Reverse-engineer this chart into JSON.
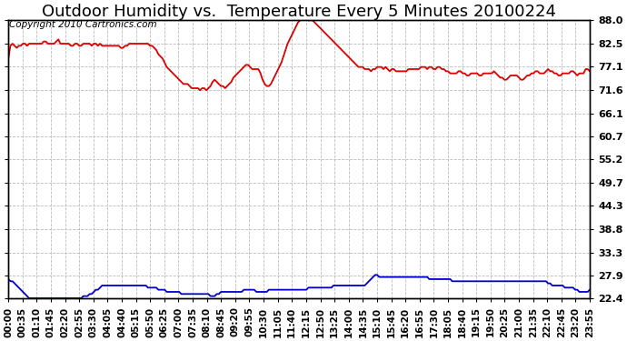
{
  "title": "Outdoor Humidity vs.  Temperature Every 5 Minutes 20100224",
  "copyright_text": "Copyright 2010 Cartronics.com",
  "yticks": [
    22.4,
    27.9,
    33.3,
    38.8,
    44.3,
    49.7,
    55.2,
    60.7,
    66.1,
    71.6,
    77.1,
    82.5,
    88.0
  ],
  "ymin": 22.4,
  "ymax": 88.0,
  "bg_color": "#ffffff",
  "grid_color": "#bbbbbb",
  "line_color_red": "#dd0000",
  "line_color_blue": "#0000cc",
  "title_fontsize": 13,
  "copyright_fontsize": 7.5,
  "tick_fontsize": 8,
  "xtick_labels": [
    "00:00",
    "00:35",
    "01:10",
    "01:45",
    "02:20",
    "02:55",
    "03:30",
    "04:05",
    "04:40",
    "05:15",
    "05:50",
    "06:25",
    "07:00",
    "07:35",
    "08:10",
    "08:45",
    "09:20",
    "09:55",
    "10:30",
    "11:05",
    "11:40",
    "12:15",
    "12:50",
    "13:25",
    "14:00",
    "14:35",
    "15:10",
    "15:45",
    "16:20",
    "16:55",
    "17:30",
    "18:05",
    "18:40",
    "19:15",
    "19:50",
    "20:25",
    "21:00",
    "21:35",
    "22:10",
    "22:45",
    "23:20",
    "23:55"
  ],
  "humidity_data": [
    79.0,
    82.0,
    82.5,
    82.0,
    81.5,
    82.0,
    82.0,
    82.5,
    82.5,
    82.0,
    82.5,
    82.5,
    82.5,
    82.5,
    82.5,
    82.5,
    82.5,
    83.0,
    83.0,
    82.5,
    82.5,
    82.5,
    82.5,
    83.0,
    83.5,
    82.5,
    82.5,
    82.5,
    82.5,
    82.5,
    82.0,
    82.0,
    82.5,
    82.5,
    82.0,
    82.0,
    82.5,
    82.5,
    82.5,
    82.5,
    82.0,
    82.5,
    82.5,
    82.0,
    82.5,
    82.0,
    82.0,
    82.0,
    82.0,
    82.0,
    82.0,
    82.0,
    82.0,
    82.0,
    81.5,
    81.5,
    82.0,
    82.0,
    82.5,
    82.5,
    82.5,
    82.5,
    82.5,
    82.5,
    82.5,
    82.5,
    82.5,
    82.5,
    82.0,
    82.0,
    81.5,
    81.0,
    80.0,
    79.5,
    79.0,
    78.0,
    77.0,
    76.5,
    76.0,
    75.5,
    75.0,
    74.5,
    74.0,
    73.5,
    73.0,
    73.0,
    73.0,
    72.5,
    72.0,
    72.0,
    72.0,
    72.0,
    71.5,
    72.0,
    72.0,
    71.5,
    72.0,
    72.5,
    73.5,
    74.0,
    73.5,
    73.0,
    72.5,
    72.5,
    72.0,
    72.5,
    73.0,
    73.5,
    74.5,
    75.0,
    75.5,
    76.0,
    76.5,
    77.0,
    77.5,
    77.5,
    77.0,
    76.5,
    76.5,
    76.5,
    76.5,
    75.5,
    74.0,
    73.0,
    72.5,
    72.5,
    73.0,
    74.0,
    75.0,
    76.0,
    77.0,
    78.0,
    79.5,
    81.0,
    82.5,
    83.5,
    84.5,
    85.5,
    86.5,
    87.5,
    88.0,
    88.5,
    88.5,
    88.5,
    88.0,
    88.0,
    88.0,
    87.5,
    87.0,
    86.5,
    86.0,
    85.5,
    85.0,
    84.5,
    84.0,
    83.5,
    83.0,
    82.5,
    82.0,
    81.5,
    81.0,
    80.5,
    80.0,
    79.5,
    79.0,
    78.5,
    78.0,
    77.5,
    77.0,
    77.0,
    77.0,
    76.5,
    76.5,
    76.5,
    76.0,
    76.5,
    76.5,
    77.0,
    77.0,
    77.0,
    76.5,
    77.0,
    76.5,
    76.0,
    76.5,
    76.5,
    76.0,
    76.0,
    76.0,
    76.0,
    76.0,
    76.0,
    76.5,
    76.5,
    76.5,
    76.5,
    76.5,
    76.5,
    77.0,
    77.0,
    77.0,
    76.5,
    77.0,
    77.0,
    76.5,
    76.5,
    77.0,
    77.0,
    76.5,
    76.5,
    76.0,
    76.0,
    75.5,
    75.5,
    75.5,
    75.5,
    76.0,
    76.0,
    75.5,
    75.5,
    75.0,
    75.0,
    75.5,
    75.5,
    75.5,
    75.5,
    75.0,
    75.0,
    75.5,
    75.5,
    75.5,
    75.5,
    75.5,
    76.0,
    75.5,
    75.0,
    74.5,
    74.5,
    74.0,
    74.0,
    74.5,
    75.0,
    75.0,
    75.0,
    75.0,
    74.5,
    74.0,
    74.0,
    74.5,
    75.0,
    75.0,
    75.5,
    75.5,
    76.0,
    76.0,
    75.5,
    75.5,
    75.5,
    76.0,
    76.5,
    76.0,
    76.0,
    75.5,
    75.5,
    75.0,
    75.0,
    75.5,
    75.5,
    75.5,
    75.5,
    76.0,
    76.0,
    75.5,
    75.0,
    75.5,
    75.5,
    75.5,
    76.5,
    76.5,
    76.0
  ],
  "temperature_data": [
    27.0,
    26.5,
    26.5,
    26.0,
    25.5,
    25.0,
    24.5,
    24.0,
    23.5,
    23.0,
    22.5,
    22.5,
    22.5,
    22.5,
    22.5,
    22.5,
    22.5,
    22.5,
    22.5,
    22.5,
    22.5,
    22.5,
    22.5,
    22.5,
    22.5,
    22.5,
    22.5,
    22.5,
    22.5,
    22.5,
    22.5,
    22.5,
    22.5,
    22.5,
    22.5,
    22.5,
    23.0,
    23.0,
    23.0,
    23.5,
    23.5,
    24.0,
    24.5,
    24.5,
    25.0,
    25.5,
    25.5,
    25.5,
    25.5,
    25.5,
    25.5,
    25.5,
    25.5,
    25.5,
    25.5,
    25.5,
    25.5,
    25.5,
    25.5,
    25.5,
    25.5,
    25.5,
    25.5,
    25.5,
    25.5,
    25.5,
    25.5,
    25.0,
    25.0,
    25.0,
    25.0,
    25.0,
    24.5,
    24.5,
    24.5,
    24.5,
    24.0,
    24.0,
    24.0,
    24.0,
    24.0,
    24.0,
    24.0,
    23.5,
    23.5,
    23.5,
    23.5,
    23.5,
    23.5,
    23.5,
    23.5,
    23.5,
    23.5,
    23.5,
    23.5,
    23.5,
    23.5,
    23.0,
    23.0,
    23.0,
    23.5,
    23.5,
    24.0,
    24.0,
    24.0,
    24.0,
    24.0,
    24.0,
    24.0,
    24.0,
    24.0,
    24.0,
    24.0,
    24.5,
    24.5,
    24.5,
    24.5,
    24.5,
    24.5,
    24.0,
    24.0,
    24.0,
    24.0,
    24.0,
    24.0,
    24.5,
    24.5,
    24.5,
    24.5,
    24.5,
    24.5,
    24.5,
    24.5,
    24.5,
    24.5,
    24.5,
    24.5,
    24.5,
    24.5,
    24.5,
    24.5,
    24.5,
    24.5,
    24.5,
    25.0,
    25.0,
    25.0,
    25.0,
    25.0,
    25.0,
    25.0,
    25.0,
    25.0,
    25.0,
    25.0,
    25.0,
    25.5,
    25.5,
    25.5,
    25.5,
    25.5,
    25.5,
    25.5,
    25.5,
    25.5,
    25.5,
    25.5,
    25.5,
    25.5,
    25.5,
    25.5,
    25.5,
    26.0,
    26.5,
    27.0,
    27.5,
    28.0,
    28.0,
    27.5,
    27.5,
    27.5,
    27.5,
    27.5,
    27.5,
    27.5,
    27.5,
    27.5,
    27.5,
    27.5,
    27.5,
    27.5,
    27.5,
    27.5,
    27.5,
    27.5,
    27.5,
    27.5,
    27.5,
    27.5,
    27.5,
    27.5,
    27.5,
    27.0,
    27.0,
    27.0,
    27.0,
    27.0,
    27.0,
    27.0,
    27.0,
    27.0,
    27.0,
    27.0,
    26.5,
    26.5,
    26.5,
    26.5,
    26.5,
    26.5,
    26.5,
    26.5,
    26.5,
    26.5,
    26.5,
    26.5,
    26.5,
    26.5,
    26.5,
    26.5,
    26.5,
    26.5,
    26.5,
    26.5,
    26.5,
    26.5,
    26.5,
    26.5,
    26.5,
    26.5,
    26.5,
    26.5,
    26.5,
    26.5,
    26.5,
    26.5,
    26.5,
    26.5,
    26.5,
    26.5,
    26.5,
    26.5,
    26.5,
    26.5,
    26.5,
    26.5,
    26.5,
    26.5,
    26.5,
    26.5,
    26.0,
    26.0,
    25.5,
    25.5,
    25.5,
    25.5,
    25.5,
    25.5,
    25.0,
    25.0,
    25.0,
    25.0,
    25.0,
    24.5,
    24.5,
    24.0,
    24.0,
    24.0,
    24.0,
    24.0,
    24.5
  ]
}
